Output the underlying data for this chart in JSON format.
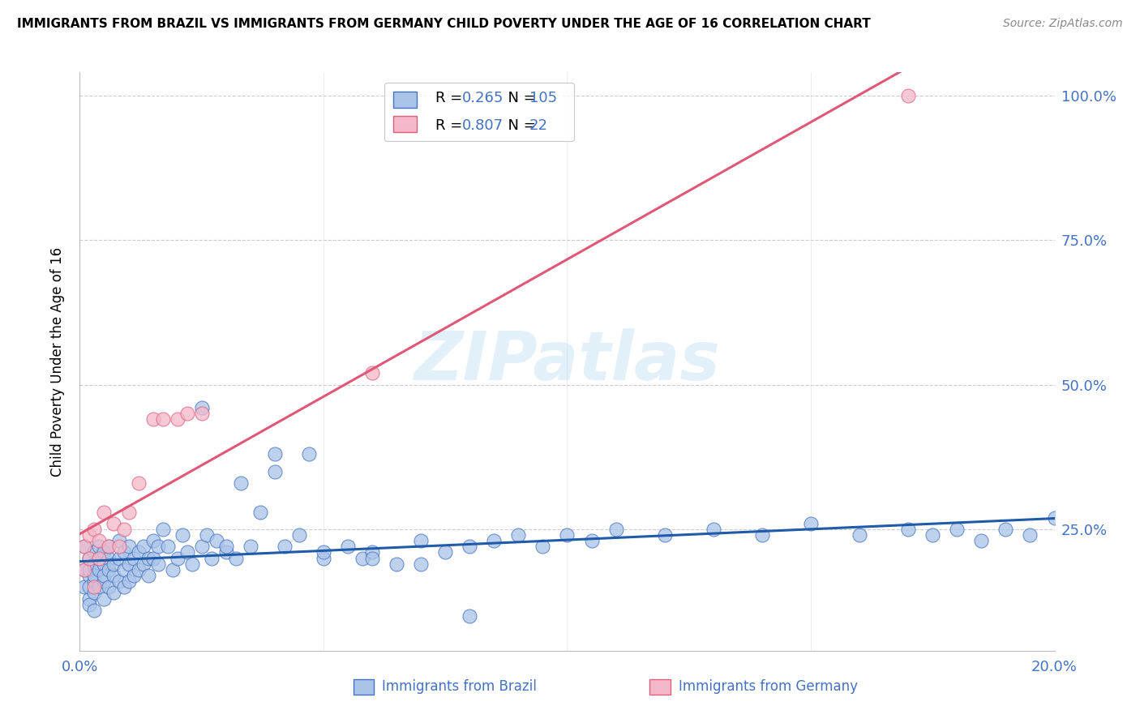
{
  "title": "IMMIGRANTS FROM BRAZIL VS IMMIGRANTS FROM GERMANY CHILD POVERTY UNDER THE AGE OF 16 CORRELATION CHART",
  "source": "Source: ZipAtlas.com",
  "ylabel": "Child Poverty Under the Age of 16",
  "xlim": [
    0.0,
    0.2
  ],
  "ylim": [
    0.04,
    1.04
  ],
  "xticks": [
    0.0,
    0.05,
    0.1,
    0.15,
    0.2
  ],
  "yticks": [
    0.25,
    0.5,
    0.75,
    1.0
  ],
  "brazil_R": "0.265",
  "brazil_N": "105",
  "germany_R": "0.807",
  "germany_N": "22",
  "brazil_face": "#aac4e8",
  "brazil_edge": "#4472c4",
  "germany_face": "#f4b8c8",
  "germany_edge": "#e06080",
  "brazil_line_color": "#1f5ba8",
  "germany_line_color": "#e05878",
  "blue_text": "#4472c4",
  "watermark": "ZIPatlas",
  "brazil_x": [
    0.001,
    0.001,
    0.001,
    0.002,
    0.002,
    0.002,
    0.002,
    0.002,
    0.002,
    0.003,
    0.003,
    0.003,
    0.003,
    0.003,
    0.003,
    0.004,
    0.004,
    0.004,
    0.004,
    0.005,
    0.005,
    0.005,
    0.005,
    0.005,
    0.006,
    0.006,
    0.006,
    0.006,
    0.007,
    0.007,
    0.007,
    0.008,
    0.008,
    0.008,
    0.009,
    0.009,
    0.009,
    0.01,
    0.01,
    0.01,
    0.011,
    0.011,
    0.012,
    0.012,
    0.013,
    0.013,
    0.014,
    0.014,
    0.015,
    0.015,
    0.016,
    0.016,
    0.017,
    0.018,
    0.019,
    0.02,
    0.021,
    0.022,
    0.023,
    0.025,
    0.026,
    0.027,
    0.028,
    0.03,
    0.032,
    0.033,
    0.035,
    0.037,
    0.04,
    0.042,
    0.045,
    0.047,
    0.05,
    0.055,
    0.058,
    0.06,
    0.065,
    0.07,
    0.075,
    0.08,
    0.085,
    0.09,
    0.095,
    0.1,
    0.105,
    0.11,
    0.12,
    0.13,
    0.14,
    0.15,
    0.16,
    0.17,
    0.175,
    0.18,
    0.185,
    0.19,
    0.195,
    0.2,
    0.025,
    0.03,
    0.04,
    0.05,
    0.06,
    0.07,
    0.08
  ],
  "brazil_y": [
    0.18,
    0.15,
    0.22,
    0.17,
    0.13,
    0.2,
    0.15,
    0.18,
    0.12,
    0.19,
    0.16,
    0.14,
    0.21,
    0.17,
    0.11,
    0.18,
    0.2,
    0.15,
    0.22,
    0.16,
    0.19,
    0.13,
    0.21,
    0.17,
    0.2,
    0.15,
    0.18,
    0.22,
    0.17,
    0.19,
    0.14,
    0.2,
    0.16,
    0.23,
    0.18,
    0.15,
    0.21,
    0.19,
    0.16,
    0.22,
    0.2,
    0.17,
    0.21,
    0.18,
    0.22,
    0.19,
    0.2,
    0.17,
    0.23,
    0.2,
    0.22,
    0.19,
    0.25,
    0.22,
    0.18,
    0.2,
    0.24,
    0.21,
    0.19,
    0.22,
    0.24,
    0.2,
    0.23,
    0.21,
    0.2,
    0.33,
    0.22,
    0.28,
    0.35,
    0.22,
    0.24,
    0.38,
    0.2,
    0.22,
    0.2,
    0.21,
    0.19,
    0.23,
    0.21,
    0.22,
    0.23,
    0.24,
    0.22,
    0.24,
    0.23,
    0.25,
    0.24,
    0.25,
    0.24,
    0.26,
    0.24,
    0.25,
    0.24,
    0.25,
    0.23,
    0.25,
    0.24,
    0.27,
    0.46,
    0.22,
    0.38,
    0.21,
    0.2,
    0.19,
    0.1
  ],
  "germany_x": [
    0.001,
    0.001,
    0.002,
    0.002,
    0.003,
    0.003,
    0.004,
    0.004,
    0.005,
    0.006,
    0.007,
    0.008,
    0.009,
    0.01,
    0.012,
    0.015,
    0.017,
    0.02,
    0.022,
    0.025,
    0.06,
    0.17
  ],
  "germany_y": [
    0.18,
    0.22,
    0.2,
    0.24,
    0.15,
    0.25,
    0.2,
    0.23,
    0.28,
    0.22,
    0.26,
    0.22,
    0.25,
    0.28,
    0.33,
    0.44,
    0.44,
    0.44,
    0.45,
    0.45,
    0.52,
    1.0
  ]
}
